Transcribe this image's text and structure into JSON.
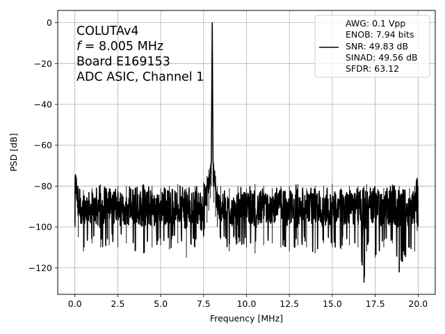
{
  "chart_data": {
    "type": "line",
    "xlabel": "Frequency [MHz]",
    "ylabel": "PSD [dB]",
    "xlim": [
      -1.0,
      21.0
    ],
    "ylim": [
      -133,
      6
    ],
    "x_ticks": [
      0.0,
      2.5,
      5.0,
      7.5,
      10.0,
      12.5,
      15.0,
      17.5,
      20.0
    ],
    "x_tick_labels": [
      "0.0",
      "2.5",
      "5.0",
      "7.5",
      "10.0",
      "12.5",
      "15.0",
      "17.5",
      "20.0"
    ],
    "y_ticks": [
      0,
      -20,
      -40,
      -60,
      -80,
      -100,
      -120
    ],
    "y_tick_labels": [
      "0",
      "−20",
      "−40",
      "−60",
      "−80",
      "−100",
      "−120"
    ],
    "grid": true,
    "legend_position": "top-right",
    "line_color": "#000000",
    "annotations": {
      "line1": "COLUTAv4",
      "line2_italic": "f",
      "line2_rest": " = 8.005 MHz",
      "line3": "Board E169153",
      "line4": "ADC ASIC, Channel 1"
    },
    "legend": {
      "lines": [
        "AWG: 0.1 Vpp",
        "ENOB: 7.94 bits",
        "SNR: 49.83 dB",
        "SINAD: 49.56 dB",
        "SFDR: 63.12"
      ]
    },
    "series": [
      {
        "x": [
          0.0,
          0.02,
          0.2,
          0.5,
          1.0,
          1.5,
          2.0,
          2.5,
          3.0,
          3.5,
          4.0,
          4.5,
          5.0,
          5.5,
          6.0,
          6.5,
          7.0,
          7.5,
          7.7,
          7.8,
          7.9,
          7.95,
          8.005,
          8.05,
          8.1,
          8.2,
          8.3,
          8.5,
          9.0,
          9.5,
          10.0,
          10.5,
          11.0,
          11.5,
          12.0,
          12.5,
          13.0,
          13.5,
          14.0,
          14.5,
          15.0,
          15.5,
          16.0,
          16.5,
          16.85,
          17.0,
          17.5,
          18.0,
          18.5,
          18.9,
          19.5,
          19.8,
          19.95,
          20.0
        ],
        "y": [
          -98,
          -75,
          -92,
          -90,
          -91,
          -92,
          -90,
          -91,
          -92,
          -90,
          -91,
          -91,
          -92,
          -90,
          -91,
          -92,
          -91,
          -90,
          -85,
          -78,
          -72,
          -68,
          0,
          -68,
          -75,
          -82,
          -88,
          -91,
          -92,
          -91,
          -90,
          -91,
          -92,
          -91,
          -90,
          -91,
          -92,
          -91,
          -90,
          -92,
          -91,
          -90,
          -92,
          -91,
          -93,
          -91,
          -90,
          -92,
          -91,
          -92,
          -91,
          -90,
          -78,
          -95
        ],
        "band_min": [
          -100,
          -100,
          -105,
          -112,
          -108,
          -110,
          -109,
          -110,
          -108,
          -112,
          -113,
          -110,
          -109,
          -111,
          -108,
          -115,
          -110,
          -105,
          -98,
          -92,
          -86,
          -80,
          0,
          -80,
          -88,
          -95,
          -100,
          -106,
          -112,
          -108,
          -110,
          -113,
          -109,
          -108,
          -110,
          -112,
          -109,
          -110,
          -113,
          -108,
          -110,
          -111,
          -109,
          -110,
          -127,
          -112,
          -115,
          -110,
          -108,
          -122,
          -110,
          -112,
          -102,
          -100
        ],
        "band_max": [
          -82,
          -74,
          -80,
          -82,
          -81,
          -79,
          -81,
          -80,
          -80,
          -81,
          -79,
          -80,
          -81,
          -80,
          -79,
          -81,
          -80,
          -78,
          -75,
          -72,
          -70,
          -68,
          0,
          -68,
          -70,
          -75,
          -80,
          -80,
          -81,
          -80,
          -81,
          -79,
          -80,
          -81,
          -80,
          -80,
          -79,
          -81,
          -80,
          -80,
          -79,
          -81,
          -80,
          -80,
          -80,
          -79,
          -80,
          -81,
          -79,
          -80,
          -81,
          -80,
          -76,
          -80
        ]
      }
    ]
  }
}
